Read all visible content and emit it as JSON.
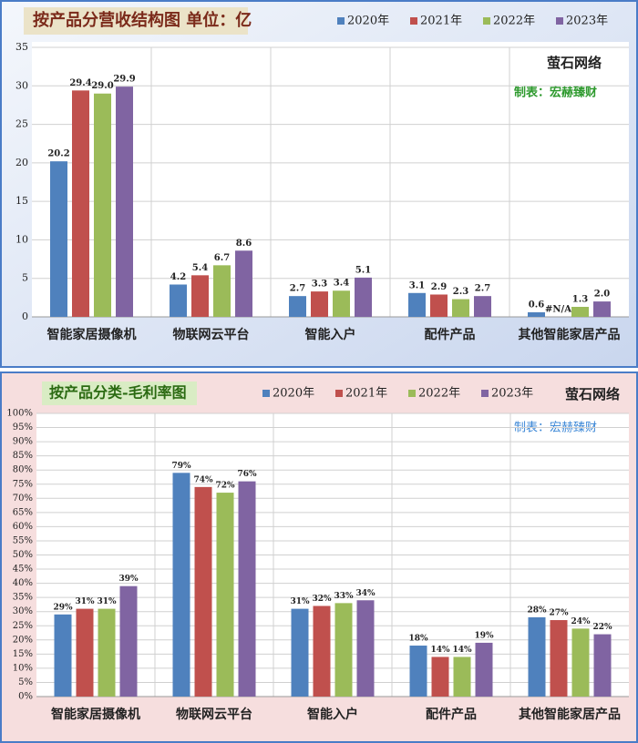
{
  "chart_data": [
    {
      "type": "bar",
      "title": "按产品分营收结构图 单位：亿",
      "categories": [
        "智能家居摄像机",
        "物联网云平台",
        "智能入户",
        "配件产品",
        "其他智能家居产品"
      ],
      "series": [
        {
          "name": "2020年",
          "color": "#4f81bd",
          "values": [
            20.2,
            4.2,
            2.7,
            3.1,
            0.6
          ],
          "value_labels": [
            "20.2",
            "4.2",
            "2.7",
            "3.1",
            "0.6"
          ]
        },
        {
          "name": "2021年",
          "color": "#c0504d",
          "values": [
            29.4,
            5.4,
            3.3,
            2.9,
            null
          ],
          "value_labels": [
            "29.4",
            "5.4",
            "3.3",
            "2.9",
            "#N/A"
          ]
        },
        {
          "name": "2022年",
          "color": "#9bbb59",
          "values": [
            29.0,
            6.7,
            3.4,
            2.3,
            1.3
          ],
          "value_labels": [
            "29.0",
            "6.7",
            "3.4",
            "2.3",
            "1.3"
          ]
        },
        {
          "name": "2023年",
          "color": "#8064a2",
          "values": [
            29.9,
            8.6,
            5.1,
            2.7,
            2.0
          ],
          "value_labels": [
            "29.9",
            "8.6",
            "5.1",
            "2.7",
            "2.0"
          ]
        }
      ],
      "ylim": [
        0,
        35
      ],
      "yticks": [
        0,
        5,
        10,
        15,
        20,
        25,
        30,
        35
      ],
      "grid": true,
      "annotations": [
        "萤石网络",
        "制表：宏赫臻财"
      ]
    },
    {
      "type": "bar",
      "title": "按产品分类-毛利率图",
      "categories": [
        "智能家居摄像机",
        "物联网云平台",
        "智能入户",
        "配件产品",
        "其他智能家居产品"
      ],
      "series": [
        {
          "name": "2020年",
          "color": "#4f81bd",
          "values": [
            29,
            79,
            31,
            18,
            28
          ],
          "value_labels": [
            "29%",
            "79%",
            "31%",
            "18%",
            "28%"
          ]
        },
        {
          "name": "2021年",
          "color": "#c0504d",
          "values": [
            31,
            74,
            32,
            14,
            27
          ],
          "value_labels": [
            "31%",
            "74%",
            "32%",
            "14%",
            "27%"
          ]
        },
        {
          "name": "2022年",
          "color": "#9bbb59",
          "values": [
            31,
            72,
            33,
            14,
            24
          ],
          "value_labels": [
            "31%",
            "72%",
            "33%",
            "14%",
            "24%"
          ]
        },
        {
          "name": "2023年",
          "color": "#8064a2",
          "values": [
            39,
            76,
            34,
            19,
            22
          ],
          "value_labels": [
            "39%",
            "76%",
            "34%",
            "19%",
            "22%"
          ]
        }
      ],
      "ylim": [
        0,
        100
      ],
      "yticks": [
        {
          "value": 0,
          "label": "0%"
        },
        {
          "value": 5,
          "label": "5%"
        },
        {
          "value": 10,
          "label": "10%"
        },
        {
          "value": 15,
          "label": "15%"
        },
        {
          "value": 20,
          "label": "20%"
        },
        {
          "value": 25,
          "label": "25%"
        },
        {
          "value": 30,
          "label": "30%"
        },
        {
          "value": 35,
          "label": "35%"
        },
        {
          "value": 40,
          "label": "40%"
        },
        {
          "value": 45,
          "label": "45%"
        },
        {
          "value": 50,
          "label": "50%"
        },
        {
          "value": 55,
          "label": "55%"
        },
        {
          "value": 60,
          "label": "60%"
        },
        {
          "value": 65,
          "label": "65%"
        },
        {
          "value": 70,
          "label": "70%"
        },
        {
          "value": 75,
          "label": "75%"
        },
        {
          "value": 80,
          "label": "80%"
        },
        {
          "value": 85,
          "label": "85%"
        },
        {
          "value": 90,
          "label": "90%"
        },
        {
          "value": 95,
          "label": "95%"
        },
        {
          "value": 100,
          "label": "100%"
        }
      ],
      "grid": true,
      "annotations": [
        "萤石网络",
        "制表：宏赫臻财"
      ]
    }
  ]
}
